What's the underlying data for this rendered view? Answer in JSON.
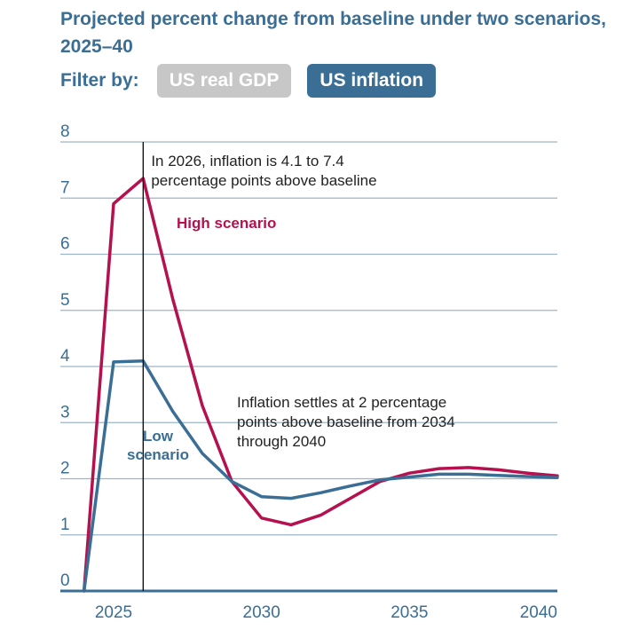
{
  "header": {
    "title": "Projected percent change from baseline under two scenarios, 2025–40",
    "filter_label": "Filter by:",
    "filters": [
      {
        "label": "US real GDP",
        "active": false
      },
      {
        "label": "US inflation",
        "active": true
      }
    ]
  },
  "colors": {
    "accent": "#3a6e95",
    "inactive_button": "#c7c7c7",
    "high_series": "#b5114f",
    "low_series": "#3a6e95",
    "grid": "#9db5c8"
  },
  "chart_data": {
    "type": "line",
    "title": "Projected percent change from baseline under two scenarios, 2025–40",
    "xlim": [
      2023.2,
      2040
    ],
    "ylim": [
      0,
      8
    ],
    "x_ticks": [
      2025,
      2030,
      2035,
      2040
    ],
    "y_ticks": [
      0,
      1,
      2,
      3,
      4,
      5,
      6,
      7,
      8
    ],
    "grid": true,
    "x": [
      2024,
      2025,
      2026,
      2027,
      2028,
      2029,
      2030,
      2031,
      2032,
      2033,
      2034,
      2035,
      2036,
      2037,
      2038,
      2039,
      2040
    ],
    "series": [
      {
        "name": "High scenario",
        "color": "#b5114f",
        "values": [
          0.0,
          6.9,
          7.35,
          5.2,
          3.3,
          1.95,
          1.3,
          1.18,
          1.35,
          1.65,
          1.95,
          2.1,
          2.18,
          2.2,
          2.16,
          2.1,
          2.05
        ]
      },
      {
        "name": "Low scenario",
        "color": "#3a6e95",
        "values": [
          0.0,
          4.08,
          4.1,
          3.2,
          2.45,
          1.95,
          1.68,
          1.65,
          1.75,
          1.87,
          1.98,
          2.03,
          2.08,
          2.08,
          2.06,
          2.04,
          2.02
        ]
      }
    ],
    "reference_line": {
      "x": 2026
    },
    "annotations": [
      {
        "lines": [
          "In 2026, inflation is 4.1 to 7.4",
          "percentage points above baseline"
        ]
      },
      {
        "lines": [
          "Inflation settles at 2 percentage",
          "points above baseline from 2034",
          "through 2040"
        ]
      }
    ],
    "series_labels": [
      {
        "lines": [
          "High scenario"
        ]
      },
      {
        "lines": [
          "Low",
          "scenario"
        ]
      }
    ]
  }
}
